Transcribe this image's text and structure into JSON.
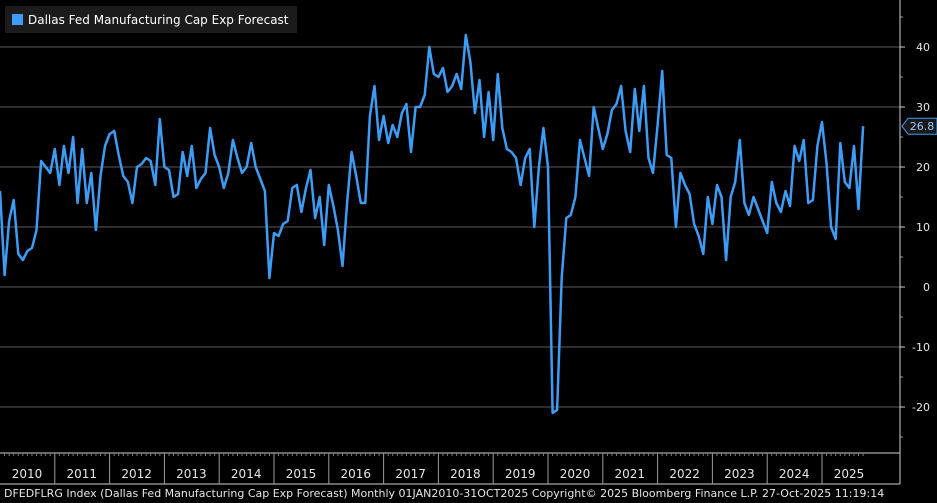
{
  "legend": {
    "label": "Dallas Fed Manufacturing Cap Exp Forecast",
    "color": "#3d9cf5"
  },
  "footer": "DFEDFLRG Index (Dallas Fed Manufacturing Cap Exp Forecast) Monthly 01JAN2010-31OCT2025 Copyright© 2025 Bloomberg Finance L.P. 27-Oct-2025 11:19:14",
  "chart_data": {
    "type": "line",
    "title": "Dallas Fed Manufacturing Cap Exp Forecast",
    "xlabel": "",
    "ylabel": "",
    "ylim": [
      -27,
      47
    ],
    "yticks": [
      40,
      30,
      20,
      10,
      0,
      -10,
      -20
    ],
    "ytick_labels": [
      "40",
      "30",
      "20",
      "10",
      "0",
      "-10",
      "-20"
    ],
    "years": [
      "2010",
      "2011",
      "2012",
      "2013",
      "2014",
      "2015",
      "2016",
      "2017",
      "2018",
      "2019",
      "2020",
      "2021",
      "2022",
      "2023",
      "2024",
      "2025"
    ],
    "last_value_label": "26.8",
    "series": [
      {
        "name": "Dallas Fed Manufacturing Cap Exp Forecast",
        "color": "#3d9cf5",
        "start": "2010-01",
        "values": [
          16.0,
          2.0,
          11.0,
          14.5,
          5.5,
          4.5,
          6.0,
          6.5,
          9.5,
          21.0,
          20.0,
          19.0,
          23.0,
          17.0,
          23.5,
          19.0,
          25.0,
          14.0,
          23.0,
          14.0,
          19.0,
          9.5,
          18.5,
          23.5,
          25.5,
          26.0,
          22.0,
          18.5,
          17.5,
          14.0,
          20.0,
          20.5,
          21.5,
          21.0,
          17.0,
          28.0,
          20.0,
          19.5,
          15.0,
          15.5,
          22.5,
          18.5,
          23.5,
          16.5,
          18.0,
          19.0,
          26.5,
          22.0,
          20.0,
          16.5,
          19.0,
          24.5,
          21.5,
          19.0,
          20.0,
          24.0,
          20.0,
          18.0,
          16.0,
          1.5,
          9.0,
          8.5,
          10.5,
          11.0,
          16.5,
          17.0,
          12.5,
          16.5,
          19.5,
          11.5,
          15.0,
          7.0,
          17.0,
          13.5,
          9.5,
          3.5,
          14.0,
          22.5,
          18.5,
          14.0,
          14.0,
          28.5,
          33.5,
          24.5,
          28.5,
          24.0,
          27.0,
          25.0,
          29.0,
          30.5,
          22.5,
          30.0,
          30.0,
          32.0,
          40.0,
          35.5,
          35.0,
          36.5,
          32.5,
          33.5,
          35.5,
          33.0,
          42.0,
          37.5,
          29.0,
          34.5,
          25.0,
          32.5,
          24.5,
          35.5,
          26.5,
          23.0,
          22.5,
          21.5,
          17.0,
          21.5,
          23.0,
          10.0,
          20.0,
          26.5,
          20.0,
          -21.0,
          -20.5,
          1.5,
          11.5,
          12.0,
          15.0,
          24.5,
          21.5,
          18.5,
          30.0,
          26.5,
          23.0,
          25.5,
          29.5,
          30.5,
          33.5,
          26.0,
          22.5,
          33.0,
          26.0,
          33.5,
          21.5,
          19.0,
          27.0,
          36.0,
          22.0,
          21.5,
          10.0,
          19.0,
          17.0,
          15.5,
          10.5,
          8.5,
          5.5,
          15.0,
          10.5,
          17.0,
          15.0,
          4.5,
          15.0,
          17.5,
          24.5,
          14.0,
          12.0,
          15.0,
          13.0,
          11.0,
          9.0,
          17.5,
          14.0,
          12.5,
          16.0,
          13.5,
          23.5,
          21.0,
          24.5,
          14.0,
          14.5,
          23.5,
          27.5,
          20.5,
          10.0,
          8.0,
          24.0,
          17.5,
          16.5,
          23.5,
          13.0,
          26.8
        ]
      }
    ]
  }
}
